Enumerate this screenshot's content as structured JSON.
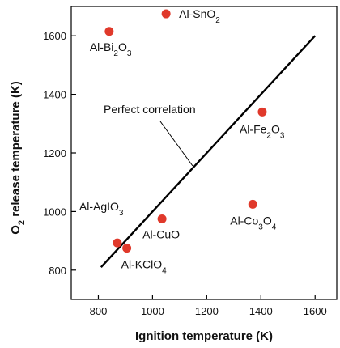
{
  "chart_data": {
    "type": "scatter",
    "xlabel": "Ignition temperature (K)",
    "ylabel_parts": [
      "O",
      "2",
      " release temperature (K)"
    ],
    "xlim": [
      700,
      1680
    ],
    "ylim": [
      700,
      1700
    ],
    "xticks": [
      800,
      1000,
      1200,
      1400,
      1600
    ],
    "yticks": [
      800,
      1000,
      1200,
      1400,
      1600
    ],
    "point_color": "#e0392b",
    "line_color": "#000000",
    "points": [
      {
        "x": 840,
        "y": 1615,
        "label_parts": [
          "Al-Bi",
          "2",
          "O",
          "3"
        ]
      },
      {
        "x": 1050,
        "y": 1675,
        "label_parts": [
          "Al-SnO",
          "2"
        ]
      },
      {
        "x": 1405,
        "y": 1340,
        "label_parts": [
          "Al-Fe",
          "2",
          "O",
          "3"
        ]
      },
      {
        "x": 1370,
        "y": 1025,
        "label_parts": [
          "Al-Co",
          "3",
          "O",
          "4"
        ]
      },
      {
        "x": 1035,
        "y": 975,
        "label_parts": [
          "Al-CuO"
        ]
      },
      {
        "x": 870,
        "y": 893,
        "label_parts": [
          "Al-AgIO",
          "3"
        ]
      },
      {
        "x": 905,
        "y": 875,
        "label_parts": [
          "Al-KClO",
          "4"
        ]
      }
    ],
    "reference_line": {
      "name": "Perfect correlation",
      "from": [
        810,
        810
      ],
      "to": [
        1600,
        1600
      ]
    }
  }
}
